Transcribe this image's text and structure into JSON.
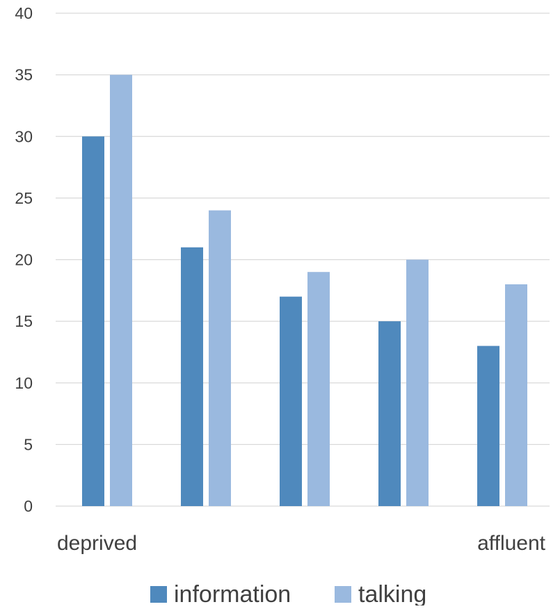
{
  "chart_data": {
    "type": "bar",
    "categories": [
      "deprived",
      "",
      "",
      "",
      "affluent"
    ],
    "series": [
      {
        "name": "information",
        "values": [
          30,
          21,
          17,
          15,
          13
        ],
        "color": "#4f89bd"
      },
      {
        "name": "talking",
        "values": [
          35,
          24,
          19,
          20,
          18
        ],
        "color": "#9ab9df"
      }
    ],
    "ylim": [
      0,
      40
    ],
    "yticks": [
      0,
      5,
      10,
      15,
      20,
      25,
      30,
      35,
      40
    ],
    "grid": true,
    "legend_position": "bottom",
    "title": "",
    "xlabel": "",
    "ylabel": ""
  }
}
